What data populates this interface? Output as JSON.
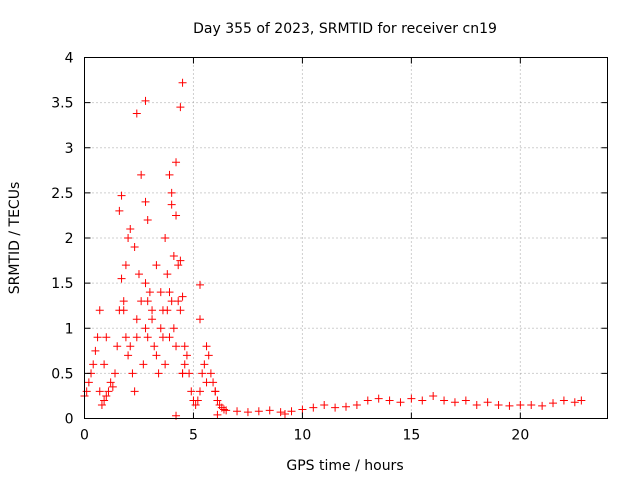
{
  "chart_data": {
    "type": "scatter",
    "title": "Day 355 of 2023, SRMTID for receiver cn19",
    "xlabel": "GPS time / hours",
    "ylabel": "SRMTID / TECUs",
    "xlim": [
      0,
      24
    ],
    "ylim": [
      0,
      4
    ],
    "xticks": [
      0,
      5,
      10,
      15,
      20
    ],
    "yticks": [
      0,
      0.5,
      1,
      1.5,
      2,
      2.5,
      3,
      3.5,
      4
    ],
    "ytick_labels": [
      "0",
      "0.5",
      "1",
      "1.5",
      "2",
      "2.5",
      "3",
      "3.5",
      "4"
    ],
    "grid": true,
    "marker": "plus",
    "color": "#ff0000",
    "series": [
      {
        "name": "cn19",
        "x": [
          0.0,
          0.1,
          0.2,
          0.3,
          0.4,
          0.5,
          0.6,
          0.7,
          0.8,
          0.9,
          1.0,
          1.1,
          1.2,
          1.3,
          1.4,
          1.5,
          1.6,
          1.7,
          1.8,
          1.9,
          2.0,
          2.1,
          2.2,
          2.3,
          2.4,
          2.5,
          2.6,
          2.7,
          2.8,
          2.9,
          3.0,
          3.1,
          3.2,
          3.3,
          3.4,
          3.5,
          3.6,
          3.7,
          3.8,
          3.9,
          4.0,
          4.1,
          4.2,
          4.3,
          4.4,
          4.5,
          4.6,
          4.7,
          4.8,
          4.9,
          5.0,
          5.1,
          5.2,
          5.3,
          5.4,
          5.5,
          5.6,
          5.7,
          5.8,
          5.9,
          6.0,
          6.1,
          6.2,
          6.3,
          6.4,
          6.5,
          7.0,
          7.5,
          8.0,
          8.5,
          9.0,
          9.5,
          10.0,
          10.5,
          11.0,
          11.5,
          12.0,
          12.5,
          13.0,
          13.5,
          14.0,
          14.5,
          15.0,
          15.5,
          16.0,
          16.5,
          17.0,
          17.5,
          18.0,
          18.5,
          19.0,
          19.5,
          20.0,
          20.5,
          21.0,
          21.5,
          22.0,
          22.5,
          22.8,
          0.7,
          0.9,
          1.0,
          1.6,
          1.8,
          1.9,
          2.0,
          2.3,
          2.4,
          2.6,
          2.8,
          2.9,
          3.1,
          3.3,
          3.5,
          3.6,
          3.9,
          4.1,
          4.3,
          4.5,
          4.6,
          5.3,
          5.6,
          6.0,
          2.8,
          2.9,
          3.7,
          3.8,
          4.0,
          4.2,
          4.4,
          4.5,
          4.5,
          4.4,
          2.4,
          2.8,
          1.7,
          3.9,
          4.0,
          2.1,
          4.2,
          5.3,
          4.2,
          6.1,
          9.2
        ],
        "y": [
          0.25,
          0.3,
          0.4,
          0.5,
          0.6,
          0.75,
          0.9,
          0.3,
          0.15,
          0.2,
          0.25,
          0.3,
          0.4,
          0.35,
          0.5,
          0.8,
          1.2,
          1.55,
          1.2,
          0.9,
          0.7,
          0.8,
          0.5,
          0.3,
          0.9,
          1.6,
          1.3,
          0.6,
          1.0,
          1.3,
          1.4,
          1.1,
          0.8,
          0.7,
          0.5,
          1.0,
          0.9,
          0.6,
          1.2,
          1.4,
          1.3,
          1.0,
          0.8,
          1.3,
          1.2,
          0.5,
          0.6,
          0.7,
          0.5,
          0.3,
          0.2,
          0.15,
          0.2,
          0.3,
          0.5,
          0.6,
          0.8,
          0.7,
          0.5,
          0.4,
          0.3,
          0.2,
          0.15,
          0.12,
          0.1,
          0.09,
          0.08,
          0.07,
          0.08,
          0.09,
          0.07,
          0.08,
          0.1,
          0.12,
          0.15,
          0.12,
          0.13,
          0.15,
          0.2,
          0.22,
          0.2,
          0.18,
          0.22,
          0.2,
          0.25,
          0.2,
          0.18,
          0.2,
          0.15,
          0.18,
          0.15,
          0.14,
          0.15,
          0.15,
          0.14,
          0.17,
          0.2,
          0.18,
          0.2,
          1.2,
          0.6,
          0.9,
          2.3,
          1.3,
          1.7,
          2.0,
          1.9,
          1.1,
          2.7,
          1.5,
          0.9,
          1.2,
          1.7,
          1.4,
          1.2,
          0.9,
          1.8,
          1.7,
          0.5,
          0.8,
          1.1,
          0.4,
          0.3,
          2.4,
          2.2,
          2.0,
          1.6,
          2.5,
          2.25,
          1.75,
          1.35,
          3.72,
          3.45,
          3.38,
          3.52,
          2.47,
          2.7,
          2.37,
          2.1,
          2.84,
          1.48,
          0.03,
          0.04,
          0.05
        ],
        "labels": []
      }
    ]
  }
}
